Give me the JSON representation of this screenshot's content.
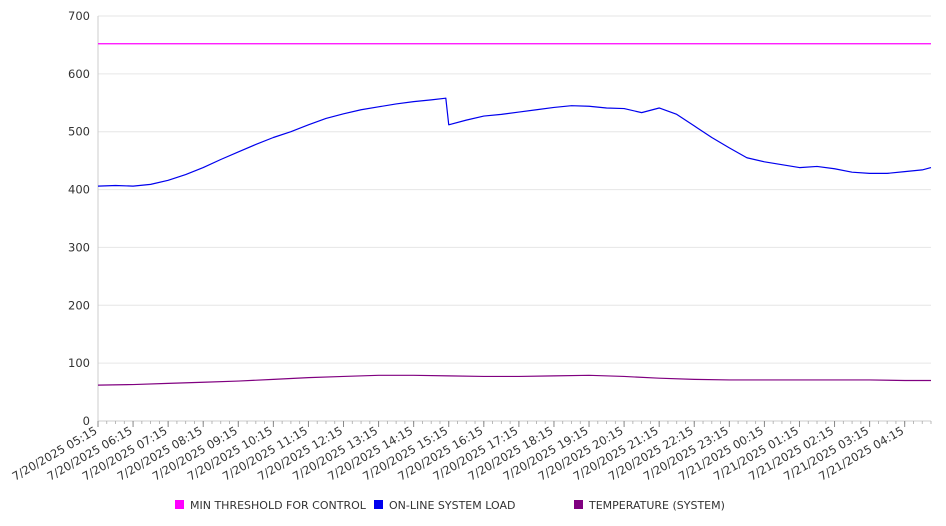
{
  "chart_data": {
    "type": "line",
    "title": "",
    "xlabel": "",
    "ylabel": "",
    "ylim": [
      0,
      700
    ],
    "y_ticks": [
      0,
      100,
      200,
      300,
      400,
      500,
      600,
      700
    ],
    "grid": true,
    "legend_position": "bottom",
    "x_tick_labels": [
      "7/20/2025 05:15",
      "7/20/2025 06:15",
      "7/20/2025 07:15",
      "7/20/2025 08:15",
      "7/20/2025 09:15",
      "7/20/2025 10:15",
      "7/20/2025 11:15",
      "7/20/2025 12:15",
      "7/20/2025 13:15",
      "7/20/2025 14:15",
      "7/20/2025 15:15",
      "7/20/2025 16:15",
      "7/20/2025 17:15",
      "7/20/2025 18:15",
      "7/20/2025 19:15",
      "7/20/2025 20:15",
      "7/20/2025 21:15",
      "7/20/2025 22:15",
      "7/20/2025 23:15",
      "7/21/2025 00:15",
      "7/21/2025 01:15",
      "7/21/2025 02:15",
      "7/21/2025 03:15",
      "7/21/2025 04:15"
    ],
    "x_hours_start": "7/20/2025 05:15",
    "x_hours_end": "7/21/2025 05:00",
    "series": [
      {
        "name": "MIN THRESHOLD FOR CONTROL",
        "color": "#ff00ff",
        "x": [
          "7/20/2025 05:15",
          "7/21/2025 05:00"
        ],
        "values": [
          652,
          652
        ]
      },
      {
        "name": "ON-LINE SYSTEM LOAD",
        "color": "#0000ee",
        "x": [
          "7/20/2025 05:15",
          "7/20/2025 05:45",
          "7/20/2025 06:15",
          "7/20/2025 06:45",
          "7/20/2025 07:15",
          "7/20/2025 07:45",
          "7/20/2025 08:15",
          "7/20/2025 08:45",
          "7/20/2025 09:15",
          "7/20/2025 09:45",
          "7/20/2025 10:15",
          "7/20/2025 10:45",
          "7/20/2025 11:15",
          "7/20/2025 11:45",
          "7/20/2025 12:15",
          "7/20/2025 12:45",
          "7/20/2025 13:15",
          "7/20/2025 13:45",
          "7/20/2025 14:15",
          "7/20/2025 14:45",
          "7/20/2025 15:10",
          "7/20/2025 15:15",
          "7/20/2025 15:45",
          "7/20/2025 16:15",
          "7/20/2025 16:45",
          "7/20/2025 17:15",
          "7/20/2025 17:45",
          "7/20/2025 18:15",
          "7/20/2025 18:45",
          "7/20/2025 19:15",
          "7/20/2025 19:45",
          "7/20/2025 20:15",
          "7/20/2025 20:45",
          "7/20/2025 21:15",
          "7/20/2025 21:45",
          "7/20/2025 22:15",
          "7/20/2025 22:45",
          "7/20/2025 23:15",
          "7/20/2025 23:45",
          "7/21/2025 00:15",
          "7/21/2025 00:45",
          "7/21/2025 01:15",
          "7/21/2025 01:45",
          "7/21/2025 02:15",
          "7/21/2025 02:45",
          "7/21/2025 03:15",
          "7/21/2025 03:45",
          "7/21/2025 04:15",
          "7/21/2025 04:45",
          "7/21/2025 05:00"
        ],
        "values": [
          406,
          407,
          406,
          409,
          416,
          426,
          438,
          452,
          465,
          478,
          490,
          500,
          512,
          523,
          531,
          538,
          543,
          548,
          552,
          555,
          558,
          512,
          520,
          527,
          530,
          534,
          538,
          542,
          545,
          544,
          541,
          540,
          533,
          541,
          530,
          510,
          490,
          472,
          455,
          448,
          443,
          438,
          440,
          436,
          430,
          428,
          428,
          431,
          434,
          438
        ]
      },
      {
        "name": "TEMPERATURE (SYSTEM)",
        "color": "#800080",
        "x": [
          "7/20/2025 05:15",
          "7/20/2025 06:15",
          "7/20/2025 07:15",
          "7/20/2025 08:15",
          "7/20/2025 09:15",
          "7/20/2025 10:15",
          "7/20/2025 11:15",
          "7/20/2025 12:15",
          "7/20/2025 13:15",
          "7/20/2025 14:15",
          "7/20/2025 15:15",
          "7/20/2025 16:15",
          "7/20/2025 17:15",
          "7/20/2025 18:15",
          "7/20/2025 19:15",
          "7/20/2025 20:15",
          "7/20/2025 21:15",
          "7/20/2025 22:15",
          "7/20/2025 23:15",
          "7/21/2025 00:15",
          "7/21/2025 01:15",
          "7/21/2025 02:15",
          "7/21/2025 03:15",
          "7/21/2025 04:15",
          "7/21/2025 05:00"
        ],
        "values": [
          62,
          63,
          65,
          67,
          69,
          72,
          75,
          77,
          79,
          79,
          78,
          77,
          77,
          78,
          79,
          77,
          74,
          72,
          71,
          71,
          71,
          71,
          71,
          70,
          70
        ]
      }
    ]
  }
}
